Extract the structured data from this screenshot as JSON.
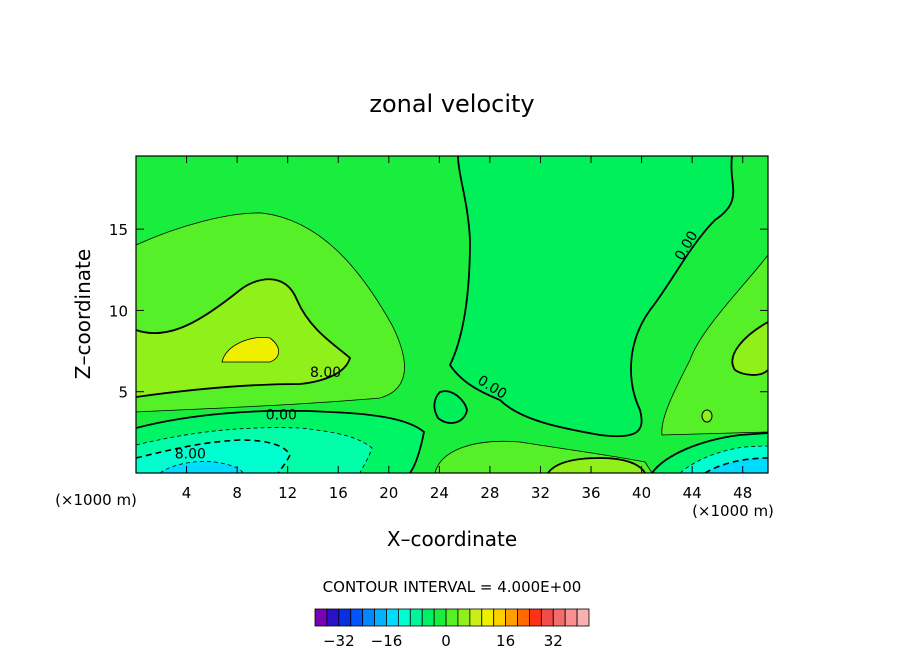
{
  "chart_data": {
    "type": "heatmap",
    "title": "zonal velocity",
    "xlabel": "X–coordinate",
    "ylabel": "Z–coordinate",
    "x_units": "(×1000 m)",
    "xlim": [
      0,
      50
    ],
    "ylim": [
      0,
      19.5
    ],
    "x_ticks": [
      4,
      8,
      12,
      16,
      20,
      24,
      28,
      32,
      36,
      40,
      44,
      48
    ],
    "y_ticks": [
      5,
      10,
      15
    ],
    "contour_labels": [
      {
        "text": "8.00",
        "x": 15,
        "z": 6.2
      },
      {
        "text": "0.00",
        "x": 11.5,
        "z": 3.6
      },
      {
        "text": "8.00",
        "x": 4.3,
        "z": 1.2
      },
      {
        "text": "0.00",
        "x": 28.2,
        "z": 5.3
      },
      {
        "text": "0.00",
        "x": 43.5,
        "z": 14
      }
    ],
    "contour_interval_text": "CONTOUR INTERVAL = 4.000E+00",
    "colorbar": {
      "ticks": [
        "−32",
        "−16",
        "0",
        "16",
        "32"
      ],
      "colors": [
        "#7a00b4",
        "#2a10c8",
        "#0a2fe0",
        "#0055ff",
        "#0088ff",
        "#00b2ff",
        "#00dcff",
        "#00ffd0",
        "#00f59a",
        "#00f066",
        "#19ee3e",
        "#55f028",
        "#8ff01a",
        "#c8f014",
        "#eef000",
        "#ffd000",
        "#ffa000",
        "#ff6a00",
        "#ff3018",
        "#f04c48",
        "#f36c6c",
        "#f89090",
        "#fbb0b0"
      ]
    }
  }
}
